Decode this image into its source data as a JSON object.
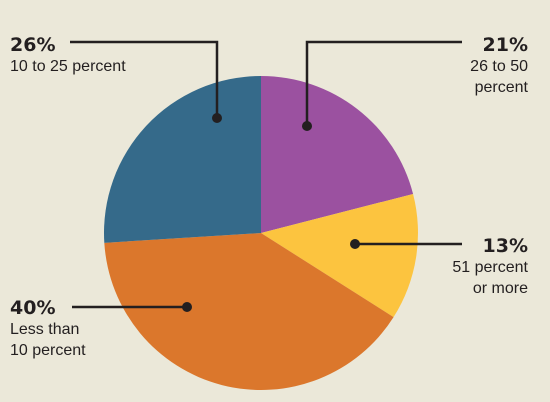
{
  "chart_data": {
    "type": "pie",
    "slices": [
      {
        "label": "26 to 50 percent",
        "percent_label": "21%",
        "value": 21,
        "color": "#9b51a0"
      },
      {
        "label": "51 percent or more",
        "percent_label": "13%",
        "value": 13,
        "color": "#fcc43f"
      },
      {
        "label": "Less than 10 percent",
        "percent_label": "40%",
        "value": 40,
        "color": "#db772c"
      },
      {
        "label": "10 to 25 percent",
        "percent_label": "26%",
        "value": 26,
        "color": "#356a8a"
      }
    ],
    "labels": {
      "s0_pct": "21%",
      "s0_line1": "26 to 50",
      "s0_line2": "percent",
      "s1_pct": "13%",
      "s1_line1": "51 percent",
      "s1_line2": "or more",
      "s2_pct": "40%",
      "s2_line1": "Less than",
      "s2_line2": "10 percent",
      "s3_pct": "26%",
      "s3_line1": "10 to 25 percent"
    },
    "start_angle_deg": 0,
    "direction": "clockwise"
  },
  "colors": {
    "background": "#ebe8d9",
    "leader": "#231f20"
  }
}
